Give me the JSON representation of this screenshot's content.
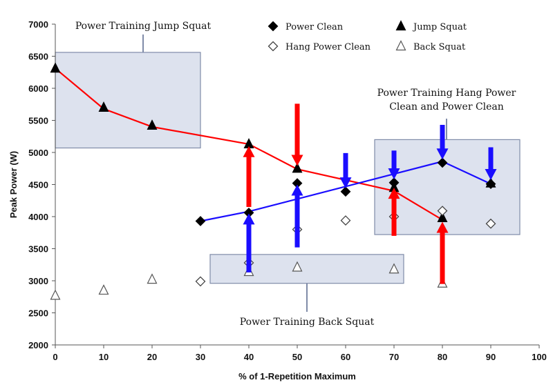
{
  "chart_data": {
    "type": "scatter",
    "title": "",
    "xlabel": "% of 1-Repetition Maximum",
    "ylabel": "Peak Power (W)",
    "xlim": [
      0,
      100
    ],
    "ylim": [
      2000,
      7000
    ],
    "x_ticks": [
      "0",
      "10",
      "20",
      "30",
      "40",
      "50",
      "60",
      "70",
      "80",
      "90",
      "100"
    ],
    "y_ticks": [
      "2000",
      "2500",
      "3000",
      "3500",
      "4000",
      "4500",
      "5000",
      "5500",
      "6000",
      "6500",
      "7000"
    ],
    "grid": false,
    "legend": {
      "placement": "top-right"
    },
    "colors": {
      "red": "#ff0000",
      "blue": "#1a0dff",
      "box_fill": "#dde2ee",
      "box_stroke": "#7f8ba8"
    },
    "series": [
      {
        "name": "Power Clean",
        "marker": "diamond-filled",
        "points": [
          [
            30,
            3930
          ],
          [
            40,
            4060
          ],
          [
            50,
            4520
          ],
          [
            60,
            4390
          ],
          [
            70,
            4530
          ],
          [
            80,
            4840
          ],
          [
            90,
            4510
          ]
        ]
      },
      {
        "name": "Jump Squat",
        "marker": "triangle-filled",
        "points": [
          [
            0,
            6310
          ],
          [
            10,
            5700
          ],
          [
            20,
            5420
          ],
          [
            40,
            5130
          ],
          [
            50,
            4750
          ],
          [
            70,
            4450
          ],
          [
            80,
            3980
          ],
          [
            90,
            4520
          ]
        ]
      },
      {
        "name": "Hang Power Clean",
        "marker": "diamond-open",
        "points": [
          [
            30,
            2990
          ],
          [
            40,
            3280
          ],
          [
            50,
            3800
          ],
          [
            60,
            3940
          ],
          [
            70,
            4000
          ],
          [
            80,
            4090
          ],
          [
            90,
            3890
          ]
        ]
      },
      {
        "name": "Back Squat",
        "marker": "triangle-open",
        "points": [
          [
            0,
            2770
          ],
          [
            10,
            2850
          ],
          [
            20,
            3020
          ],
          [
            40,
            3140
          ],
          [
            50,
            3210
          ],
          [
            70,
            3180
          ],
          [
            80,
            2960
          ]
        ]
      }
    ],
    "lines": [
      {
        "color": "red",
        "points": [
          [
            0,
            6310
          ],
          [
            10,
            5680
          ],
          [
            20,
            5400
          ],
          [
            40,
            5130
          ],
          [
            50,
            4740
          ],
          [
            70,
            4400
          ],
          [
            80,
            3950
          ]
        ]
      },
      {
        "color": "blue",
        "points": [
          [
            30,
            3930
          ],
          [
            40,
            4080
          ],
          [
            80,
            4860
          ],
          [
            90,
            4510
          ]
        ]
      }
    ],
    "arrows": [
      {
        "color": "red",
        "x": 40,
        "from": 4150,
        "to": 5100
      },
      {
        "color": "red",
        "x": 50,
        "from": 5760,
        "to": 4790
      },
      {
        "color": "red",
        "x": 70,
        "from": 3700,
        "to": 4450
      },
      {
        "color": "red",
        "x": 80,
        "from": 2950,
        "to": 3920
      },
      {
        "color": "blue",
        "x": 40,
        "from": 3130,
        "to": 4050
      },
      {
        "color": "blue",
        "x": 50,
        "from": 3520,
        "to": 4500
      },
      {
        "color": "blue",
        "x": 60,
        "from": 4990,
        "to": 4440
      },
      {
        "color": "blue",
        "x": 70,
        "from": 5030,
        "to": 4580
      },
      {
        "color": "blue",
        "x": 80,
        "from": 5430,
        "to": 4890
      },
      {
        "color": "blue",
        "x": 90,
        "from": 5080,
        "to": 4570
      }
    ],
    "annotations": [
      {
        "lines": [
          "Power Training Jump Squat"
        ],
        "box": {
          "x0": 0,
          "x1": 30,
          "y0": 5070,
          "y1": 6560
        }
      },
      {
        "lines": [
          "Power Training Hang Power",
          "Clean and Power Clean"
        ],
        "box": {
          "x0": 66,
          "x1": 96,
          "y0": 3720,
          "y1": 5200
        }
      },
      {
        "lines": [
          "Power Training Back Squat"
        ],
        "box": {
          "x0": 32,
          "x1": 72,
          "y0": 2960,
          "y1": 3410
        }
      }
    ]
  }
}
